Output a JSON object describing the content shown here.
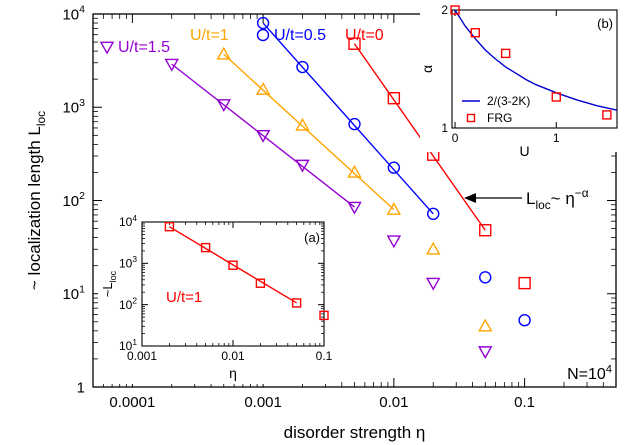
{
  "colors": {
    "u0": "#ff0000",
    "u05": "#0000ff",
    "u1": "#ffa500",
    "u15": "#9400d3",
    "fit_b": "#0000cc",
    "axis": "#000000"
  },
  "chart_data": [
    {
      "id": "main",
      "type": "scatter",
      "xscale": "log",
      "yscale": "log",
      "xlim": [
        5e-05,
        0.5
      ],
      "ylim": [
        1,
        10000
      ],
      "xlabel": "disorder strength η",
      "ylabel": "~ localization length L_loc",
      "xticks": [
        {
          "v": 0.0001,
          "label": "0.0001"
        },
        {
          "v": 0.001,
          "label": "0.001"
        },
        {
          "v": 0.01,
          "label": "0.01"
        },
        {
          "v": 0.1,
          "label": "0.1"
        }
      ],
      "yticks": [
        {
          "v": 1,
          "base": "1",
          "exp": ""
        },
        {
          "v": 10,
          "base": "10",
          "exp": "1"
        },
        {
          "v": 100,
          "base": "10",
          "exp": "2"
        },
        {
          "v": 1000,
          "base": "10",
          "exp": "3"
        },
        {
          "v": 10000,
          "base": "10",
          "exp": "4"
        }
      ],
      "series": [
        {
          "name": "U/t=0",
          "marker": "square",
          "color_key": "u0",
          "points": [
            [
              0.005,
              4800
            ],
            [
              0.01,
              1250
            ],
            [
              0.02,
              310
            ],
            [
              0.05,
              48
            ],
            [
              0.1,
              13
            ]
          ],
          "fit": [
            [
              0.005,
              4800
            ],
            [
              0.05,
              48
            ]
          ]
        },
        {
          "name": "U/t=0.5",
          "marker": "circle",
          "color_key": "u05",
          "points": [
            [
              0.001,
              8000
            ],
            [
              0.002,
              2700
            ],
            [
              0.005,
              660
            ],
            [
              0.01,
              225
            ],
            [
              0.02,
              72
            ],
            [
              0.05,
              15
            ],
            [
              0.1,
              5.2
            ]
          ],
          "fit": [
            [
              0.001,
              8000
            ],
            [
              0.02,
              72
            ]
          ]
        },
        {
          "name": "U/t=1",
          "marker": "triangle-up",
          "color_key": "u1",
          "points": [
            [
              0.0005,
              3700
            ],
            [
              0.001,
              1550
            ],
            [
              0.002,
              640
            ],
            [
              0.005,
              200
            ],
            [
              0.01,
              80
            ],
            [
              0.02,
              30
            ],
            [
              0.05,
              4.5
            ]
          ],
          "fit": [
            [
              0.0005,
              3700
            ],
            [
              0.01,
              80
            ]
          ]
        },
        {
          "name": "U/t=1.5",
          "marker": "triangle-down",
          "color_key": "u15",
          "points": [
            [
              0.0002,
              2900
            ],
            [
              0.0005,
              1070
            ],
            [
              0.001,
              500
            ],
            [
              0.002,
              240
            ],
            [
              0.005,
              85
            ],
            [
              0.01,
              37
            ],
            [
              0.02,
              13
            ],
            [
              0.05,
              2.4
            ]
          ],
          "fit": [
            [
              0.0002,
              2900
            ],
            [
              0.005,
              85
            ]
          ]
        }
      ],
      "annotations": {
        "arrow_label": "L_loc~ η^−α",
        "n_label": "N=10^4"
      }
    },
    {
      "id": "inset_a",
      "type": "scatter",
      "xscale": "log",
      "yscale": "log",
      "xlim": [
        0.001,
        0.1
      ],
      "ylim": [
        10,
        10000
      ],
      "panel_label": "(a)",
      "xlabel": "η",
      "ylabel": "~L_loc",
      "xticks": [
        {
          "v": 0.001,
          "label": "0.001"
        },
        {
          "v": 0.01,
          "label": "0.01"
        },
        {
          "v": 0.1,
          "label": "0.1"
        }
      ],
      "yticks": [
        {
          "v": 10,
          "base": "10",
          "exp": "1"
        },
        {
          "v": 100,
          "base": "10",
          "exp": "2"
        },
        {
          "v": 1000,
          "base": "10",
          "exp": "3"
        },
        {
          "v": 10000,
          "base": "10",
          "exp": "4"
        }
      ],
      "series": [
        {
          "name": "U/t=1",
          "marker": "square",
          "color_key": "u0",
          "points": [
            [
              0.002,
              7700
            ],
            [
              0.005,
              2400
            ],
            [
              0.01,
              900
            ],
            [
              0.02,
              330
            ],
            [
              0.05,
              110
            ],
            [
              0.1,
              55
            ]
          ],
          "fit": [
            [
              0.002,
              7700
            ],
            [
              0.05,
              110
            ]
          ]
        }
      ]
    },
    {
      "id": "inset_b",
      "type": "scatter",
      "xscale": "linear",
      "yscale": "log",
      "xlim": [
        -0.03,
        1.6
      ],
      "ylim": [
        1,
        2
      ],
      "panel_label": "(b)",
      "xlabel": "U",
      "ylabel": "α",
      "xticks": [
        {
          "v": 0,
          "label": "0"
        },
        {
          "v": 1,
          "label": "1"
        }
      ],
      "yticks": [
        {
          "v": 1,
          "label": "1"
        },
        {
          "v": 2,
          "label": "2"
        }
      ],
      "series": [
        {
          "name": "2/(3-2K)",
          "kind": "line",
          "color_key": "fit_b",
          "points": [
            [
              0,
              2.0
            ],
            [
              0.1,
              1.82
            ],
            [
              0.2,
              1.69
            ],
            [
              0.3,
              1.58
            ],
            [
              0.4,
              1.5
            ],
            [
              0.5,
              1.43
            ],
            [
              0.6,
              1.38
            ],
            [
              0.7,
              1.33
            ],
            [
              0.8,
              1.29
            ],
            [
              0.9,
              1.26
            ],
            [
              1.0,
              1.23
            ],
            [
              1.2,
              1.18
            ],
            [
              1.4,
              1.14
            ],
            [
              1.6,
              1.11
            ]
          ]
        },
        {
          "name": "FRG",
          "kind": "marker",
          "marker": "square",
          "color_key": "u0",
          "points": [
            [
              0,
              2.0
            ],
            [
              0.2,
              1.75
            ],
            [
              0.5,
              1.55
            ],
            [
              1.0,
              1.2
            ],
            [
              1.5,
              1.08
            ]
          ]
        }
      ]
    }
  ]
}
